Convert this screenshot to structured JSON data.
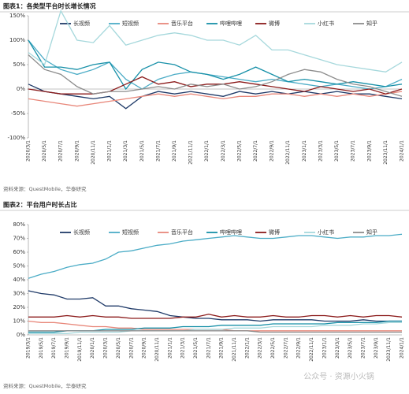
{
  "chart_data": [
    {
      "type": "line",
      "title": "图表1：各类型平台时长增长情况",
      "source": "资料来源：QuestMobile，华泰研究",
      "categories": [
        "2020/3/1",
        "2020/5/1",
        "2020/7/1",
        "2020/9/1",
        "2020/11/1",
        "2021/1/1",
        "2021/3/1",
        "2021/5/1",
        "2021/7/1",
        "2021/9/1",
        "2021/11/1",
        "2022/1/1",
        "2022/3/1",
        "2022/5/1",
        "2022/7/1",
        "2022/9/1",
        "2022/11/1",
        "2023/1/1",
        "2023/3/1",
        "2023/5/1",
        "2023/7/1",
        "2023/9/1",
        "2023/11/1",
        "2024/1/1"
      ],
      "series": [
        {
          "name": "长视频",
          "color": "#1f3a68",
          "values": [
            10,
            -5,
            -10,
            -15,
            -20,
            -15,
            -40,
            -15,
            -5,
            -10,
            -5,
            -10,
            -15,
            -5,
            -10,
            -5,
            -10,
            -5,
            -10,
            -5,
            -10,
            -10,
            -15,
            -20
          ]
        },
        {
          "name": "短视频",
          "color": "#4bacc6",
          "values": [
            100,
            60,
            40,
            30,
            40,
            55,
            20,
            0,
            20,
            30,
            35,
            30,
            25,
            20,
            15,
            20,
            15,
            10,
            5,
            10,
            5,
            0,
            5,
            20
          ]
        },
        {
          "name": "音乐平台",
          "color": "#e8877a",
          "values": [
            -20,
            -25,
            -30,
            -35,
            -30,
            -25,
            -20,
            -15,
            -10,
            -15,
            -10,
            -15,
            -20,
            -15,
            -15,
            -10,
            -10,
            -15,
            -10,
            -15,
            -10,
            -15,
            -10,
            -5
          ]
        },
        {
          "name": "哔哩哔哩",
          "color": "#1790a8",
          "values": [
            100,
            45,
            45,
            40,
            50,
            55,
            0,
            40,
            55,
            50,
            35,
            30,
            20,
            30,
            45,
            30,
            15,
            20,
            15,
            10,
            15,
            10,
            5,
            10
          ]
        },
        {
          "name": "微博",
          "color": "#8b1a1a",
          "values": [
            0,
            -5,
            -10,
            -10,
            -10,
            -5,
            10,
            25,
            10,
            15,
            5,
            10,
            10,
            15,
            10,
            5,
            0,
            -5,
            5,
            0,
            -5,
            0,
            -10,
            0
          ]
        },
        {
          "name": "小红书",
          "color": "#a6d8dc",
          "values": [
            75,
            50,
            160,
            100,
            95,
            130,
            90,
            100,
            110,
            115,
            110,
            100,
            100,
            90,
            110,
            80,
            80,
            70,
            60,
            50,
            45,
            40,
            35,
            55
          ]
        },
        {
          "name": "知乎",
          "color": "#8c8c8c",
          "values": [
            70,
            40,
            30,
            5,
            -10,
            -5,
            -5,
            0,
            5,
            0,
            10,
            5,
            10,
            0,
            5,
            15,
            30,
            40,
            35,
            20,
            10,
            5,
            -5,
            -15
          ]
        }
      ],
      "ylim": [
        -100,
        150
      ],
      "yticks": [
        {
          "value": -100,
          "label": "-100%"
        },
        {
          "value": -50,
          "label": "-50%"
        },
        {
          "value": 0,
          "label": "0%"
        },
        {
          "value": 50,
          "label": "50%"
        },
        {
          "value": 100,
          "label": "100%"
        },
        {
          "value": 150,
          "label": "150%"
        }
      ],
      "grid": false,
      "legend": "top"
    },
    {
      "type": "line",
      "title": "图表2：平台用户时长占比",
      "source": "资料来源：QuestMobile，华泰研究",
      "categories": [
        "2019/3/1",
        "2019/5/1",
        "2019/7/1",
        "2019/9/1",
        "2019/11/1",
        "2020/1/1",
        "2020/3/1",
        "2020/5/1",
        "2020/7/1",
        "2020/9/1",
        "2020/11/1",
        "2021/1/1",
        "2021/3/1",
        "2021/5/1",
        "2021/7/1",
        "2021/9/1",
        "2021/11/1",
        "2022/1/1",
        "2022/3/1",
        "2022/5/1",
        "2022/7/1",
        "2022/9/1",
        "2022/11/1",
        "2023/1/1",
        "2023/3/1",
        "2023/5/1",
        "2023/7/1",
        "2023/9/1",
        "2023/11/1",
        "2024/1/1"
      ],
      "series": [
        {
          "name": "长视频",
          "color": "#1f3a68",
          "values": [
            32,
            30,
            29,
            26,
            26,
            27,
            21,
            21,
            19,
            18,
            17,
            14,
            13,
            12,
            12,
            11,
            11,
            11,
            10,
            11,
            11,
            11,
            11,
            10,
            10,
            10,
            11,
            10,
            10,
            10
          ]
        },
        {
          "name": "短视频",
          "color": "#4bacc6",
          "values": [
            41,
            44,
            46,
            49,
            51,
            52,
            55,
            60,
            61,
            63,
            65,
            66,
            68,
            69,
            70,
            71,
            72,
            71,
            70,
            70,
            71,
            72,
            72,
            71,
            70,
            71,
            71,
            72,
            72,
            73
          ]
        },
        {
          "name": "音乐平台",
          "color": "#e8877a",
          "values": [
            10,
            9,
            9,
            8,
            7,
            6,
            6,
            5,
            5,
            4,
            4,
            4,
            4,
            4,
            4,
            4,
            3,
            3,
            3,
            3,
            3,
            3,
            3,
            3,
            3,
            3,
            3,
            3,
            3,
            3
          ]
        },
        {
          "name": "哔哩哔哩",
          "color": "#1790a8",
          "values": [
            2,
            2,
            2,
            3,
            3,
            3,
            4,
            4,
            4,
            5,
            5,
            5,
            6,
            6,
            6,
            7,
            7,
            7,
            7,
            8,
            8,
            8,
            8,
            8,
            9,
            9,
            9,
            9,
            10,
            10
          ]
        },
        {
          "name": "微博",
          "color": "#8b1a1a",
          "values": [
            13,
            13,
            13,
            14,
            13,
            14,
            13,
            13,
            12,
            12,
            12,
            12,
            13,
            13,
            15,
            13,
            14,
            13,
            13,
            14,
            13,
            13,
            14,
            14,
            13,
            14,
            13,
            14,
            14,
            13
          ]
        },
        {
          "name": "小红书",
          "color": "#a6d8dc",
          "values": [
            1,
            1,
            1,
            1,
            2,
            2,
            2,
            2,
            3,
            3,
            3,
            3,
            3,
            4,
            4,
            4,
            5,
            5,
            5,
            6,
            6,
            6,
            6,
            7,
            7,
            7,
            8,
            8,
            9,
            9
          ]
        },
        {
          "name": "知乎",
          "color": "#8c8c8c",
          "values": [
            3,
            3,
            3,
            3,
            3,
            3,
            3,
            3,
            3,
            3,
            3,
            3,
            3,
            3,
            3,
            3,
            3,
            3,
            2,
            2,
            2,
            2,
            2,
            2,
            2,
            2,
            2,
            2,
            2,
            2
          ]
        }
      ],
      "ylim": [
        0,
        80
      ],
      "yticks": [
        {
          "value": 0,
          "label": "0%"
        },
        {
          "value": 10,
          "label": "10%"
        },
        {
          "value": 20,
          "label": "20%"
        },
        {
          "value": 30,
          "label": "30%"
        },
        {
          "value": 40,
          "label": "40%"
        },
        {
          "value": 50,
          "label": "50%"
        },
        {
          "value": 60,
          "label": "60%"
        },
        {
          "value": 70,
          "label": "70%"
        },
        {
          "value": 80,
          "label": "80%"
        }
      ],
      "grid": false,
      "legend": "top"
    }
  ],
  "watermark": "公众号 · 资源小火锅"
}
